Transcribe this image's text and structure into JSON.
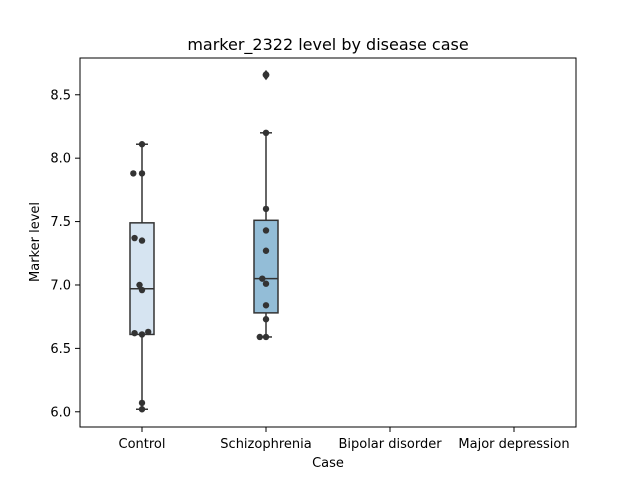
{
  "chart_data": {
    "type": "box",
    "title": "marker_2322 level by disease case",
    "xlabel": "Case",
    "ylabel": "Marker level",
    "categories": [
      "Control",
      "Schizophrenia",
      "Bipolar disorder",
      "Major depression"
    ],
    "ylim": [
      5.88,
      8.79
    ],
    "yticks": [
      6.0,
      6.5,
      7.0,
      7.5,
      8.0,
      8.5
    ],
    "ytick_labels": [
      "6.0",
      "6.5",
      "7.0",
      "7.5",
      "8.0",
      "8.5"
    ],
    "grid": false,
    "boxes": [
      {
        "category": "Control",
        "whisker_low": 6.02,
        "q1": 6.61,
        "median": 6.97,
        "q3": 7.49,
        "whisker_high": 8.11,
        "fliers": [],
        "color": "#d6e4f1"
      },
      {
        "category": "Schizophrenia",
        "whisker_low": 6.59,
        "q1": 6.78,
        "median": 7.05,
        "q3": 7.51,
        "whisker_high": 8.2,
        "fliers": [
          8.66,
          8.65
        ],
        "color": "#93bdd7"
      }
    ],
    "points": [
      {
        "category": "Control",
        "value": 7.88,
        "jitter": -0.07
      },
      {
        "category": "Control",
        "value": 7.88,
        "jitter": 0.0
      },
      {
        "category": "Control",
        "value": 8.11,
        "jitter": 0.0
      },
      {
        "category": "Control",
        "value": 7.37,
        "jitter": -0.06
      },
      {
        "category": "Control",
        "value": 7.35,
        "jitter": 0.0
      },
      {
        "category": "Control",
        "value": 7.0,
        "jitter": -0.02
      },
      {
        "category": "Control",
        "value": 6.96,
        "jitter": 0.0
      },
      {
        "category": "Control",
        "value": 6.62,
        "jitter": -0.06
      },
      {
        "category": "Control",
        "value": 6.61,
        "jitter": 0.0
      },
      {
        "category": "Control",
        "value": 6.63,
        "jitter": 0.05
      },
      {
        "category": "Control",
        "value": 6.07,
        "jitter": 0.0
      },
      {
        "category": "Control",
        "value": 6.02,
        "jitter": 0.0
      },
      {
        "category": "Schizophrenia",
        "value": 8.66,
        "jitter": 0.0
      },
      {
        "category": "Schizophrenia",
        "value": 8.2,
        "jitter": 0.0
      },
      {
        "category": "Schizophrenia",
        "value": 7.6,
        "jitter": 0.0
      },
      {
        "category": "Schizophrenia",
        "value": 7.43,
        "jitter": 0.0
      },
      {
        "category": "Schizophrenia",
        "value": 7.27,
        "jitter": 0.0
      },
      {
        "category": "Schizophrenia",
        "value": 7.05,
        "jitter": -0.03
      },
      {
        "category": "Schizophrenia",
        "value": 7.01,
        "jitter": 0.0
      },
      {
        "category": "Schizophrenia",
        "value": 6.84,
        "jitter": 0.0
      },
      {
        "category": "Schizophrenia",
        "value": 6.73,
        "jitter": 0.0
      },
      {
        "category": "Schizophrenia",
        "value": 6.59,
        "jitter": -0.05
      },
      {
        "category": "Schizophrenia",
        "value": 6.59,
        "jitter": 0.0
      }
    ],
    "colors": {
      "outline": "#333333",
      "point": "#333333",
      "axes": "#000000"
    }
  }
}
